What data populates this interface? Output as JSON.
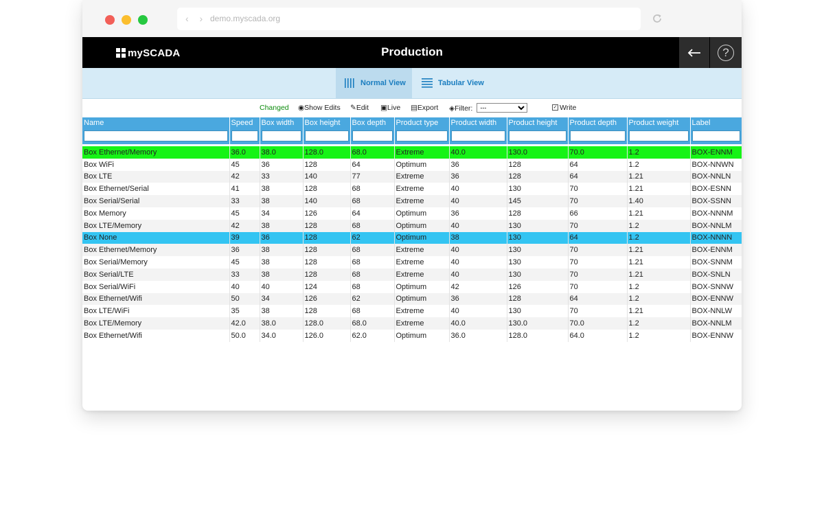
{
  "browser": {
    "nav_glyphs": "‹ ›",
    "url": "demo.myscada.org"
  },
  "app": {
    "logo_text": "mySCADA",
    "title": "Production",
    "back_glyph": "←",
    "help_glyph": "?"
  },
  "views": {
    "normal_label": "Normal View",
    "tabular_label": "Tabular View"
  },
  "toolbar": {
    "changed": "Changed",
    "show_edits": "Show Edits",
    "edit": "Edit",
    "live": "Live",
    "export": "Export",
    "filter_label": "Filter:",
    "filter_value": "---",
    "write": "Write"
  },
  "colors": {
    "changed_row": "#16f316",
    "selected_row": "#33c4f2",
    "header": "#4aa8df"
  },
  "table": {
    "columns": [
      "Name",
      "Speed",
      "Box width",
      "Box height",
      "Box depth",
      "Product type",
      "Product width",
      "Product height",
      "Product depth",
      "Product weight",
      "Label"
    ],
    "rows": [
      {
        "state": "changed",
        "cells": [
          "Box Ethernet/Memory",
          "36.0",
          "38.0",
          "128.0",
          "68.0",
          "Extreme",
          "40.0",
          "130.0",
          "70.0",
          "1.2",
          "BOX-ENNM"
        ]
      },
      {
        "state": "",
        "cells": [
          "Box WiFi",
          "45",
          "36",
          "128",
          "64",
          "Optimum",
          "36",
          "128",
          "64",
          "1.2",
          "BOX-NNWN"
        ]
      },
      {
        "state": "",
        "cells": [
          "Box LTE",
          "42",
          "33",
          "140",
          "77",
          "Extreme",
          "36",
          "128",
          "64",
          "1.21",
          "BOX-NNLN"
        ]
      },
      {
        "state": "",
        "cells": [
          "Box Ethernet/Serial",
          "41",
          "38",
          "128",
          "68",
          "Extreme",
          "40",
          "130",
          "70",
          "1.21",
          "BOX-ESNN"
        ]
      },
      {
        "state": "",
        "cells": [
          "Box Serial/Serial",
          "33",
          "38",
          "140",
          "68",
          "Extreme",
          "40",
          "145",
          "70",
          "1.40",
          "BOX-SSNN"
        ]
      },
      {
        "state": "",
        "cells": [
          "Box Memory",
          "45",
          "34",
          "126",
          "64",
          "Optimum",
          "36",
          "128",
          "66",
          "1.21",
          "BOX-NNNM"
        ]
      },
      {
        "state": "",
        "cells": [
          "Box LTE/Memory",
          "42",
          "38",
          "128",
          "68",
          "Optimum",
          "40",
          "130",
          "70",
          "1.2",
          "BOX-NNLM"
        ]
      },
      {
        "state": "selected",
        "cells": [
          "Box None",
          "39",
          "36",
          "128",
          "62",
          "Optimum",
          "38",
          "130",
          "64",
          "1.2",
          "BOX-NNNN"
        ]
      },
      {
        "state": "",
        "cells": [
          "Box Ethernet/Memory",
          "36",
          "38",
          "128",
          "68",
          "Extreme",
          "40",
          "130",
          "70",
          "1.21",
          "BOX-ENNM"
        ]
      },
      {
        "state": "",
        "cells": [
          "Box Serial/Memory",
          "45",
          "38",
          "128",
          "68",
          "Extreme",
          "40",
          "130",
          "70",
          "1.21",
          "BOX-SNNM"
        ]
      },
      {
        "state": "",
        "cells": [
          "Box Serial/LTE",
          "33",
          "38",
          "128",
          "68",
          "Extreme",
          "40",
          "130",
          "70",
          "1.21",
          "BOX-SNLN"
        ]
      },
      {
        "state": "",
        "cells": [
          "Box Serial/WiFi",
          "40",
          "40",
          "124",
          "68",
          "Optimum",
          "42",
          "126",
          "70",
          "1.2",
          "BOX-SNNW"
        ]
      },
      {
        "state": "",
        "cells": [
          "Box Ethernet/Wifi",
          "50",
          "34",
          "126",
          "62",
          "Optimum",
          "36",
          "128",
          "64",
          "1.2",
          "BOX-ENNW"
        ]
      },
      {
        "state": "",
        "cells": [
          "Box LTE/WiFi",
          "35",
          "38",
          "128",
          "68",
          "Extreme",
          "40",
          "130",
          "70",
          "1.21",
          "BOX-NNLW"
        ]
      },
      {
        "state": "",
        "cells": [
          "Box LTE/Memory",
          "42.0",
          "38.0",
          "128.0",
          "68.0",
          "Extreme",
          "40.0",
          "130.0",
          "70.0",
          "1.2",
          "BOX-NNLM"
        ]
      },
      {
        "state": "",
        "cells": [
          "Box Ethernet/Wifi",
          "50.0",
          "34.0",
          "126.0",
          "62.0",
          "Optimum",
          "36.0",
          "128.0",
          "64.0",
          "1.2",
          "BOX-ENNW"
        ]
      }
    ]
  }
}
